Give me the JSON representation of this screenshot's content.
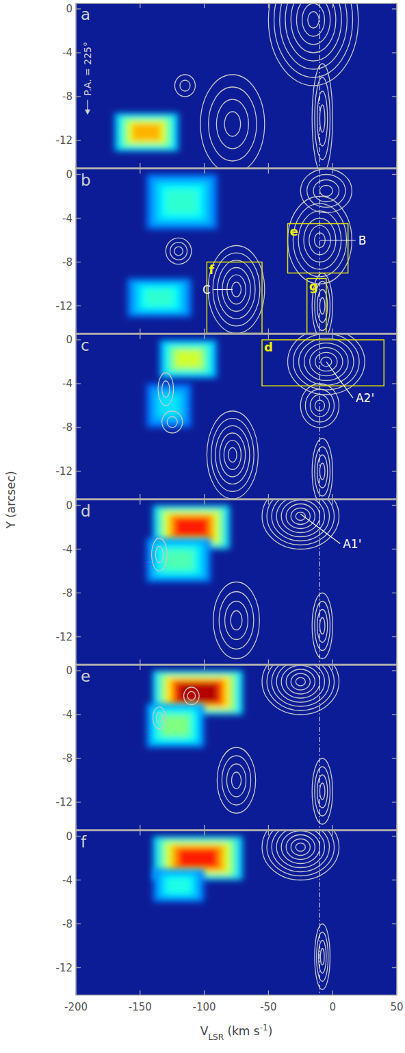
{
  "chart_data": {
    "type": "contour",
    "xlabel": [
      {
        "text": "V"
      },
      {
        "text": "LSR",
        "sub": true
      },
      {
        "text": " (km s"
      },
      {
        "text": "-1",
        "sup": true
      },
      {
        "text": ")"
      }
    ],
    "ylabel": "Y (arcsec)",
    "xlim": [
      -200,
      50
    ],
    "ylim": [
      -14.5,
      0.5
    ],
    "xticks": [
      -200,
      -150,
      -100,
      -50,
      0,
      50
    ],
    "yticks": [
      0,
      -4,
      -8,
      -12
    ],
    "reference_velocity": -10,
    "panels": [
      {
        "title": "a",
        "annotation": "P.A. = 225°",
        "emission": [
          {
            "v": [
              -170,
              -120
            ],
            "y": [
              -9.5,
              -13
            ],
            "level": 0.7
          }
        ],
        "contours": [
          {
            "v": -115,
            "y": -7,
            "rv": 8,
            "ry": 1,
            "n": 2
          },
          {
            "v": -78,
            "y": -10.5,
            "rv": 25,
            "ry": 4.5,
            "n": 4
          },
          {
            "v": -15,
            "y": -1,
            "rv": 35,
            "ry": 6,
            "n": 8
          },
          {
            "v": -8,
            "y": -10,
            "rv": 8,
            "ry": 5,
            "n": 4
          }
        ],
        "boxes": [],
        "features": []
      },
      {
        "title": "b",
        "emission": [
          {
            "v": [
              -145,
              -90
            ],
            "y": [
              0,
              -5
            ],
            "level": 0.42
          },
          {
            "v": [
              -160,
              -110
            ],
            "y": [
              -9.5,
              -13
            ],
            "level": 0.42
          }
        ],
        "contours": [
          {
            "v": -120,
            "y": -7,
            "rv": 10,
            "ry": 1.2,
            "n": 3
          },
          {
            "v": -75,
            "y": -10.5,
            "rv": 22,
            "ry": 4,
            "n": 6
          },
          {
            "v": -10,
            "y": -6,
            "rv": 25,
            "ry": 4,
            "n": 6
          },
          {
            "v": -5,
            "y": -1.5,
            "rv": 20,
            "ry": 2,
            "n": 4
          },
          {
            "v": -8,
            "y": -12,
            "rv": 8,
            "ry": 3,
            "n": 4
          }
        ],
        "boxes": [
          {
            "label": "e",
            "v": [
              -35,
              12
            ],
            "y": [
              -4.5,
              -9
            ]
          },
          {
            "label": "f",
            "v": [
              -98,
              -55
            ],
            "y": [
              -8,
              -14.5
            ]
          },
          {
            "label": "g",
            "v": [
              -20,
              -5
            ],
            "y": [
              -9.5,
              -14.5
            ]
          }
        ],
        "features": [
          {
            "label": "B",
            "v": -10,
            "y": -6,
            "label_v": 20,
            "label_y": -6
          },
          {
            "label": "C",
            "v": -78,
            "y": -10.5,
            "label_v": -95,
            "label_y": -10.5
          }
        ]
      },
      {
        "title": "c",
        "emission": [
          {
            "v": [
              -135,
              -90
            ],
            "y": [
              0,
              -3.5
            ],
            "level": 0.58
          },
          {
            "v": [
              -145,
              -110
            ],
            "y": [
              -4,
              -8
            ],
            "level": 0.35
          }
        ],
        "contours": [
          {
            "v": -130,
            "y": -4.5,
            "rv": 6,
            "ry": 1.5,
            "n": 2
          },
          {
            "v": -125,
            "y": -7.5,
            "rv": 8,
            "ry": 1,
            "n": 2
          },
          {
            "v": -78,
            "y": -10.5,
            "rv": 20,
            "ry": 4,
            "n": 6
          },
          {
            "v": -5,
            "y": -2,
            "rv": 30,
            "ry": 3,
            "n": 7
          },
          {
            "v": -10,
            "y": -6,
            "rv": 15,
            "ry": 2,
            "n": 4
          },
          {
            "v": -8,
            "y": -12,
            "rv": 8,
            "ry": 3,
            "n": 4
          }
        ],
        "boxes": [
          {
            "label": "d",
            "v": [
              -55,
              40
            ],
            "y": [
              0,
              -4.2
            ]
          }
        ],
        "features": [
          {
            "label": "A2'",
            "v": -5,
            "y": -2,
            "label_v": 18,
            "label_y": -5.3
          }
        ]
      },
      {
        "title": "d",
        "emission": [
          {
            "v": [
              -140,
              -80
            ],
            "y": [
              0,
              -4
            ],
            "level": 0.85
          },
          {
            "v": [
              -145,
              -95
            ],
            "y": [
              -3,
              -7
            ],
            "level": 0.45
          }
        ],
        "contours": [
          {
            "v": -135,
            "y": -4.5,
            "rv": 6,
            "ry": 1.5,
            "n": 2
          },
          {
            "v": -25,
            "y": -1,
            "rv": 30,
            "ry": 3,
            "n": 8
          },
          {
            "v": -75,
            "y": -10.5,
            "rv": 18,
            "ry": 3.5,
            "n": 4
          },
          {
            "v": -8,
            "y": -11,
            "rv": 8,
            "ry": 3,
            "n": 4
          }
        ],
        "boxes": [],
        "features": [
          {
            "label": "A1'",
            "v": -25,
            "y": -0.8,
            "label_v": 8,
            "label_y": -3.5
          }
        ]
      },
      {
        "title": "e",
        "emission": [
          {
            "v": [
              -140,
              -70
            ],
            "y": [
              0,
              -4
            ],
            "level": 0.95
          },
          {
            "v": [
              -145,
              -100
            ],
            "y": [
              -3,
              -7
            ],
            "level": 0.5
          }
        ],
        "contours": [
          {
            "v": -110,
            "y": -2.3,
            "rv": 6,
            "ry": 0.8,
            "n": 2
          },
          {
            "v": -135,
            "y": -4.3,
            "rv": 5,
            "ry": 1,
            "n": 2
          },
          {
            "v": -25,
            "y": -1,
            "rv": 30,
            "ry": 3,
            "n": 8
          },
          {
            "v": -75,
            "y": -10,
            "rv": 15,
            "ry": 3,
            "n": 4
          },
          {
            "v": -8,
            "y": -11,
            "rv": 8,
            "ry": 3,
            "n": 4
          }
        ],
        "boxes": [],
        "features": []
      },
      {
        "title": "f",
        "emission": [
          {
            "v": [
              -140,
              -70
            ],
            "y": [
              0,
              -4
            ],
            "level": 0.85
          },
          {
            "v": [
              -140,
              -100
            ],
            "y": [
              -3,
              -6
            ],
            "level": 0.4
          }
        ],
        "contours": [
          {
            "v": -25,
            "y": -1,
            "rv": 30,
            "ry": 3,
            "n": 8
          },
          {
            "v": -8,
            "y": -11,
            "rv": 6,
            "ry": 3,
            "n": 4
          }
        ],
        "boxes": [],
        "features": []
      }
    ]
  }
}
